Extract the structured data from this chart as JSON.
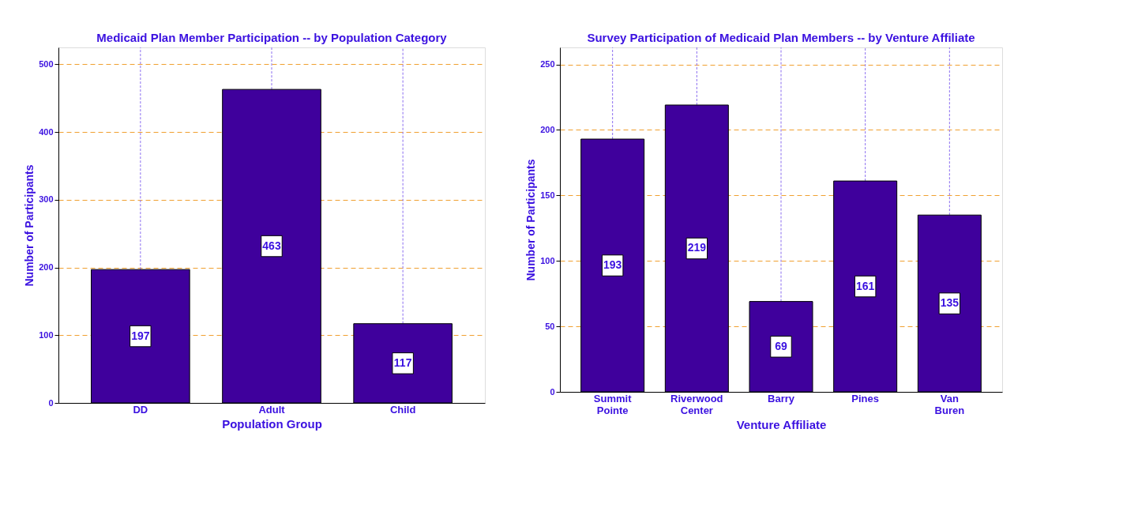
{
  "chart_data": [
    {
      "type": "bar",
      "title": "Medicaid Plan Member Participation -- by Population Category",
      "xlabel": "Population Group",
      "ylabel": "Number of Participants",
      "categories": [
        "DD",
        "Adult",
        "Child"
      ],
      "values": [
        197,
        463,
        117
      ],
      "color": "#3f009c",
      "ylim": [
        0,
        525
      ],
      "yticks": [
        0,
        100,
        200,
        300,
        400,
        500
      ],
      "grid": true,
      "data_labels": true
    },
    {
      "type": "bar",
      "title": "Survey Participation of Medicaid Plan Members -- by Venture Affiliate",
      "xlabel": "Venture Affiliate",
      "ylabel": "Number of Participants",
      "categories": [
        "Summit Pointe",
        "Riverwood Center",
        "Barry",
        "Pines",
        "Van Buren"
      ],
      "values": [
        193,
        219,
        69,
        161,
        135
      ],
      "color": "#3f009c",
      "ylim": [
        0,
        263
      ],
      "yticks": [
        0,
        50,
        100,
        150,
        200,
        250
      ],
      "grid": true,
      "data_labels": true
    }
  ]
}
